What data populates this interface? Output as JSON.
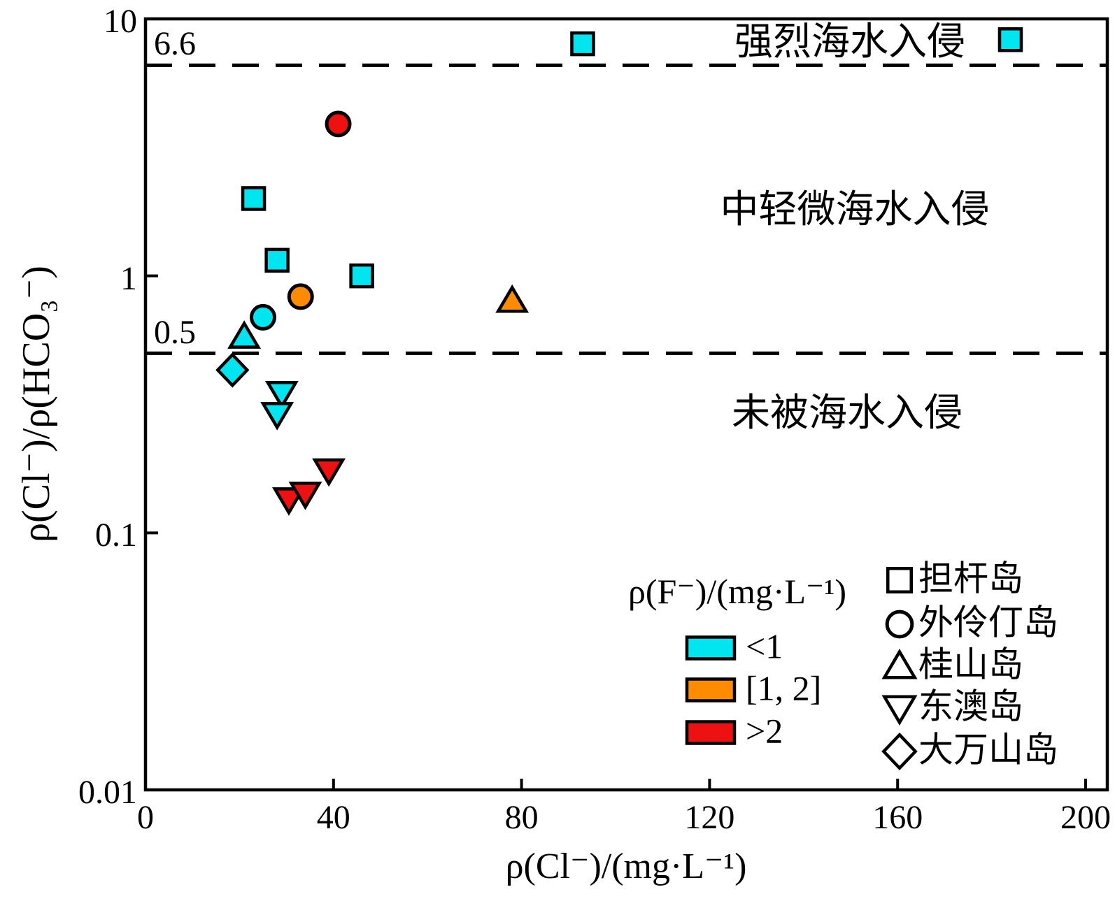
{
  "chart_data": {
    "type": "scatter",
    "xlabel": "ρ(Cl⁻)/(mg·L⁻¹)",
    "ylabel": "ρ(Cl⁻)/ρ(HCO₃⁻)",
    "x_axis": {
      "min": 0,
      "max": 205,
      "ticks": [
        0,
        40,
        80,
        120,
        160,
        200
      ],
      "grid": false
    },
    "y_axis": {
      "scale": "log",
      "min": 0.01,
      "max": 10,
      "ticks": [
        10,
        1,
        0.1,
        0.01
      ],
      "tick_labels": [
        "10",
        "1",
        "0.1",
        "0.01"
      ],
      "grid": false
    },
    "reference_lines": [
      {
        "value": 6.6,
        "label": "6.6",
        "style": "dashed"
      },
      {
        "value": 0.5,
        "label": "0.5",
        "style": "dashed"
      }
    ],
    "region_labels": [
      {
        "label": "强烈海水入侵",
        "meaning": "strong seawater intrusion"
      },
      {
        "label": "中轻微海水入侵",
        "meaning": "moderate-slight seawater intrusion"
      },
      {
        "label": "未被海水入侵",
        "meaning": "not intruded by seawater"
      }
    ],
    "color_legend_title": "ρ(F⁻)/(mg·L⁻¹)",
    "color_classes": [
      {
        "label": "<1",
        "color": "#00E5F0"
      },
      {
        "label": "[1, 2]",
        "color": "#FF8C00"
      },
      {
        "label": ">2",
        "color": "#EE1111"
      }
    ],
    "series": [
      {
        "name": "担杆岛",
        "marker": "square",
        "points": [
          [
            93,
            8.0,
            0
          ],
          [
            184,
            8.3,
            0
          ],
          [
            23,
            2.0,
            0
          ],
          [
            28,
            1.15,
            0
          ],
          [
            46,
            1.0,
            0
          ]
        ]
      },
      {
        "name": "外伶仃岛",
        "marker": "circle",
        "points": [
          [
            41,
            3.9,
            2
          ],
          [
            33,
            0.83,
            1
          ],
          [
            25,
            0.69,
            0
          ]
        ]
      },
      {
        "name": "桂山岛",
        "marker": "triangle-up",
        "points": [
          [
            78,
            0.8,
            1
          ],
          [
            21,
            0.58,
            0
          ]
        ]
      },
      {
        "name": "东澳岛",
        "marker": "triangle-down",
        "points": [
          [
            29,
            0.35,
            0
          ],
          [
            28,
            0.29,
            0
          ],
          [
            39,
            0.175,
            2
          ],
          [
            30.5,
            0.135,
            2
          ],
          [
            34,
            0.142,
            2
          ]
        ]
      },
      {
        "name": "大万山岛",
        "marker": "diamond",
        "points": [
          [
            18.5,
            0.43,
            0
          ]
        ]
      }
    ],
    "point_format": "[x_Cl_mg_per_L, y_Cl_over_HCO3_ratio, color_class_index]"
  }
}
